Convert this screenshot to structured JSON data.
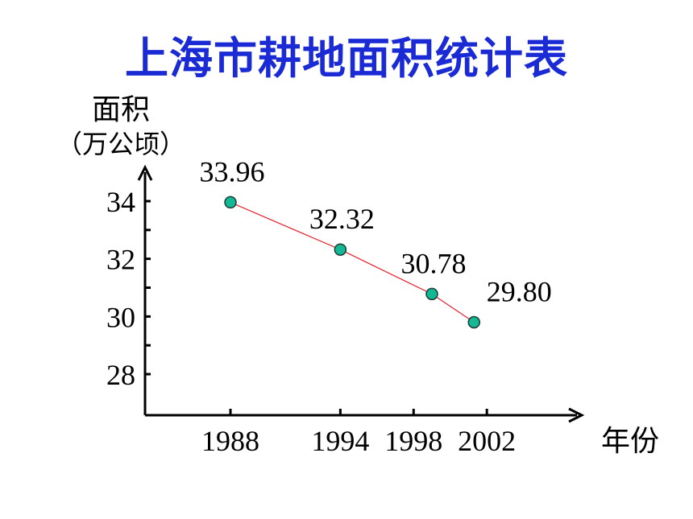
{
  "title": "上海市耕地面积统计表",
  "chart_data": {
    "type": "line",
    "title": "上海市耕地面积统计表",
    "ylabel": "面积",
    "ylabel_unit": "（万公顷）",
    "xlabel": "年份",
    "categories": [
      "1988",
      "1994",
      "1998",
      "2002"
    ],
    "x": [
      1988,
      1994,
      1998,
      2002
    ],
    "series": [
      {
        "values": [
          33.96,
          32.32,
          30.78,
          29.8
        ],
        "value_labels": [
          "33.96",
          "32.32",
          "30.78",
          "29.80"
        ],
        "point_x": [
          1988,
          1994,
          1999,
          2001.3
        ]
      }
    ],
    "yticks": [
      "34",
      "32",
      "30",
      "28"
    ],
    "ylim": [
      26.5,
      35
    ],
    "grid": false,
    "line_color": "#e8202a",
    "marker_color": "#14b894"
  }
}
